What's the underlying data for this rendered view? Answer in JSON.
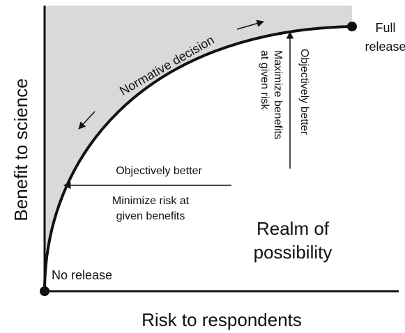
{
  "diagram": {
    "y_axis_label": "Benefit to science",
    "x_axis_label": "Risk to respondents",
    "end_point": {
      "lines": [
        "Full",
        "release"
      ]
    },
    "start_point": "No release",
    "region_label": {
      "lines": [
        "Realm of",
        "possibility"
      ]
    },
    "curve_label": "Normative decision",
    "horizontal_arrow": {
      "label": "Objectively better",
      "lines": [
        "Minimize risk at",
        "given benefits"
      ]
    },
    "vertical_arrow": {
      "label": "Objectively better",
      "lines": [
        "Maximize benefits",
        "at given risk"
      ]
    }
  }
}
